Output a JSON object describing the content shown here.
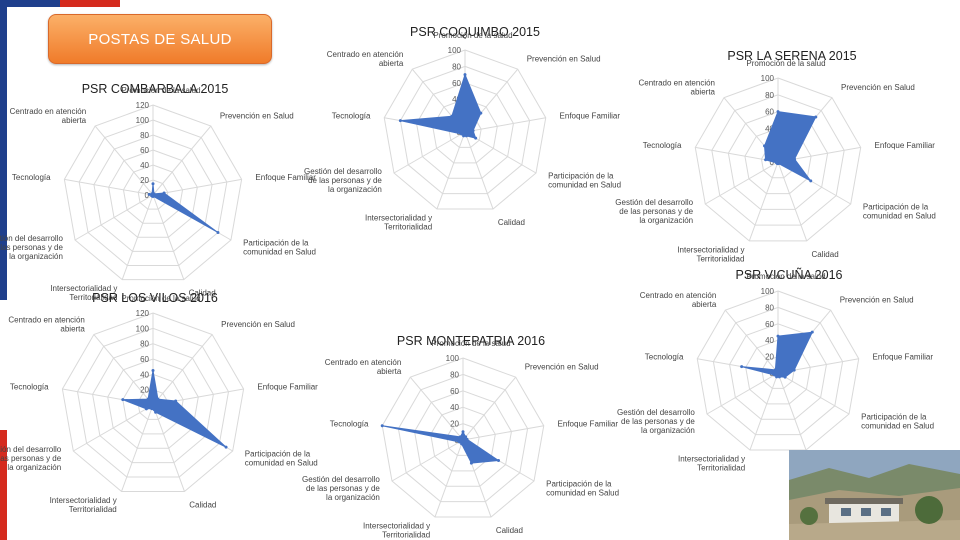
{
  "banner": {
    "label": "POSTAS DE SALUD"
  },
  "colors": {
    "fill": "#4472c4",
    "grid": "#d9d9d9",
    "banner": "#f08a3c",
    "flag_blue": "#1f3f8c",
    "flag_red": "#d52b1e"
  },
  "chart_data": [
    {
      "type": "radar",
      "title": "PSR COQUIMBO 2015",
      "categories": [
        "Promoción de la salud",
        "Prevención en Salud",
        "Enfoque Familiar",
        "Participación de la comunidad en Salud",
        "Calidad",
        "Intersectorialidad y Territorialidad",
        "Gestión del desarrollo de las personas y de la organización",
        "Tecnología",
        "Centrado en atención abierta"
      ],
      "values": [
        70,
        30,
        10,
        15,
        5,
        5,
        5,
        80,
        25
      ],
      "rlim": [
        0,
        100
      ],
      "ticks": [
        "100",
        "80",
        "60",
        "40",
        "20",
        "0"
      ]
    },
    {
      "type": "radar",
      "title": "PSR COMBARBALA 2015",
      "categories": [
        "Promoción de la salud",
        "Prevención en Salud",
        "Enfoque Familiar",
        "Participación de la comunidad en Salud",
        "Calidad",
        "Intersectorialidad y Territorialidad",
        "Gestión del desarrollo de las personas y de la organización",
        "Tecnología",
        "Centrado en atención abierta"
      ],
      "values": [
        15,
        2,
        15,
        100,
        2,
        2,
        2,
        5,
        2
      ],
      "rlim": [
        0,
        120
      ],
      "ticks": [
        "120",
        "100",
        "80",
        "60",
        "40",
        "20",
        "0"
      ]
    },
    {
      "type": "radar",
      "title": "PSR LOS VILOS 2016",
      "categories": [
        "Promoción de la salud",
        "Prevención en Salud",
        "Enfoque Familiar",
        "Participación de la comunidad en Salud",
        "Calidad",
        "Intersectorialidad y Territorialidad",
        "Gestión del desarrollo de las personas y de la organización",
        "Tecnología",
        "Centrado en atención abierta"
      ],
      "values": [
        45,
        10,
        30,
        110,
        10,
        5,
        10,
        40,
        10
      ],
      "rlim": [
        0,
        120
      ],
      "ticks": [
        "120",
        "100",
        "80",
        "60",
        "40",
        "20",
        "0"
      ]
    },
    {
      "type": "radar",
      "title": "PSR LA SERENA 2015",
      "categories": [
        "Promoción de la salud",
        "Prevención en Salud",
        "Enfoque Familiar",
        "Participación de la comunidad en Salud",
        "Calidad",
        "Intersectorialidad y Territorialidad",
        "Gestión del desarrollo de las personas y de la organización",
        "Tecnología",
        "Centrado en atención abierta"
      ],
      "values": [
        60,
        70,
        20,
        45,
        2,
        2,
        2,
        15,
        25
      ],
      "rlim": [
        0,
        100
      ],
      "ticks": [
        "100",
        "80",
        "60",
        "40",
        "20",
        "0"
      ]
    },
    {
      "type": "radar",
      "title": "PSR VICUÑA 2016",
      "categories": [
        "Promoción de la salud",
        "Prevención en Salud",
        "Enfoque Familiar",
        "Participación de la comunidad en Salud",
        "Calidad",
        "Intersectorialidad y Territorialidad",
        "Gestión del desarrollo de las personas y de la organización",
        "Tecnología",
        "Centrado en atención abierta"
      ],
      "values": [
        45,
        65,
        20,
        10,
        5,
        5,
        5,
        45,
        5
      ],
      "rlim": [
        0,
        100
      ],
      "ticks": [
        "100",
        "80",
        "60",
        "40",
        "20",
        "0"
      ]
    },
    {
      "type": "radar",
      "title": "PSR MONTEPATRIA 2016",
      "categories": [
        "Promoción de la salud",
        "Prevención en Salud",
        "Enfoque Familiar",
        "Participación de la comunidad en Salud",
        "Calidad",
        "Intersectorialidad y Territorialidad",
        "Gestión del desarrollo de las personas y de la organización",
        "Tecnología",
        "Centrado en atención abierta"
      ],
      "values": [
        10,
        5,
        5,
        50,
        30,
        5,
        5,
        100,
        5
      ],
      "rlim": [
        0,
        100
      ],
      "ticks": [
        "100",
        "80",
        "60",
        "40",
        "20",
        "0"
      ]
    }
  ]
}
